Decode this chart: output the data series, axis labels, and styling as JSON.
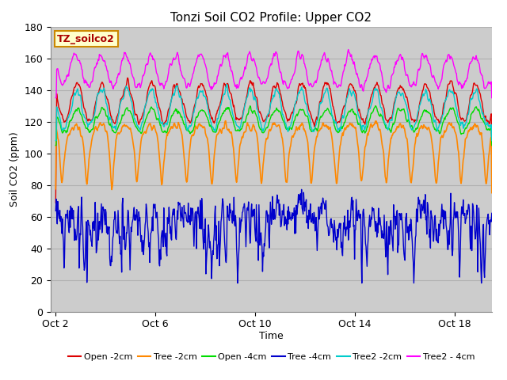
{
  "title": "Tonzi Soil CO2 Profile: Upper CO2",
  "xlabel": "Time",
  "ylabel": "Soil CO2 (ppm)",
  "ylim": [
    0,
    180
  ],
  "yticks": [
    0,
    20,
    40,
    60,
    80,
    100,
    120,
    140,
    160,
    180
  ],
  "plot_bg_color": "#d0d0d0",
  "grid_color": "#b8b8b8",
  "xtick_labels": [
    "Oct 2",
    "Oct 6",
    "Oct 10",
    "Oct 14",
    "Oct 18"
  ],
  "watermark": "TZ_soilco2",
  "series": [
    {
      "label": "Open -2cm",
      "color": "#dd0000"
    },
    {
      "label": "Tree -2cm",
      "color": "#ff8800"
    },
    {
      "label": "Open -4cm",
      "color": "#00dd00"
    },
    {
      "label": "Tree -4cm",
      "color": "#0000cc"
    },
    {
      "label": "Tree2 -2cm",
      "color": "#00cccc"
    },
    {
      "label": "Tree2 - 4cm",
      "color": "#ff00ff"
    }
  ]
}
